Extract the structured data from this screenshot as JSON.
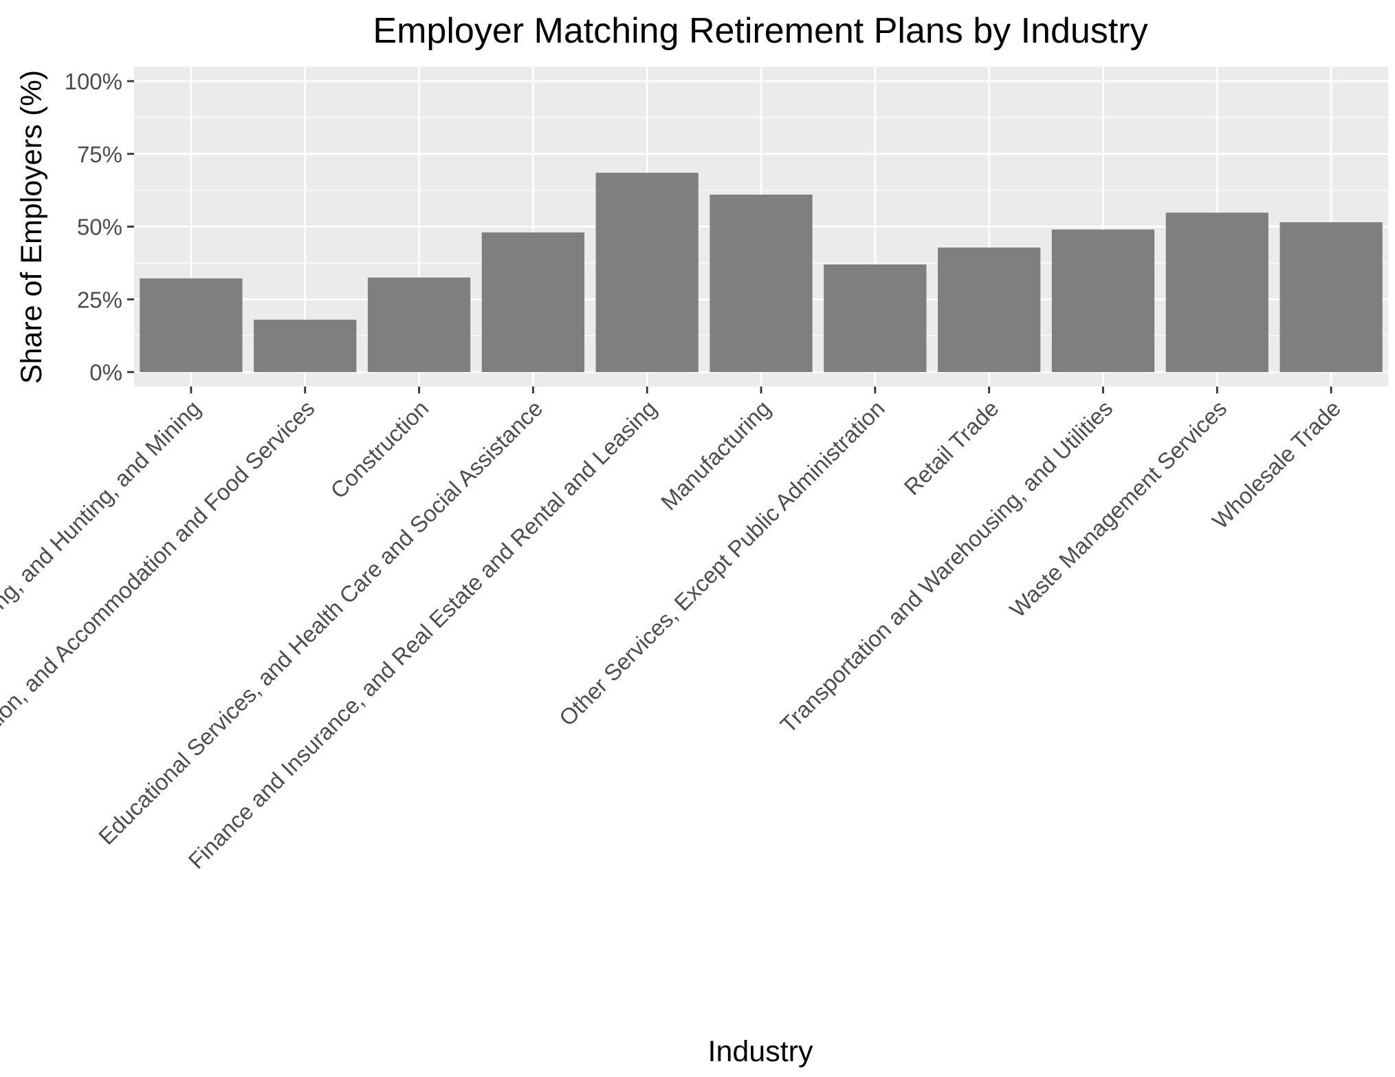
{
  "chart_data": {
    "type": "bar",
    "title": "Employer Matching Retirement Plans by Industry",
    "xlabel": "Industry",
    "ylabel": "Share of Employers (%)",
    "ylim": [
      0,
      100
    ],
    "y_ticks": [
      0,
      25,
      50,
      75,
      100
    ],
    "y_tick_labels": [
      "0%",
      "25%",
      "50%",
      "75%",
      "100%"
    ],
    "grid": true,
    "legend": "none",
    "categories": [
      "Agriculture, Forestry, Fishing, and Hunting, and Mining",
      "Arts, Entertainment, and Recreation, and Accommodation and Food Services",
      "Construction",
      "Educational Services, and Health Care and Social Assistance",
      "Finance and Insurance, and Real Estate and Rental and Leasing",
      "Manufacturing",
      "Other Services, Except Public Administration",
      "Retail Trade",
      "Transportation and Warehousing, and Utilities",
      "Waste Management Services",
      "Wholesale Trade"
    ],
    "values": [
      32.2,
      18,
      32.5,
      48,
      68.5,
      61,
      37,
      42.8,
      49,
      54.8,
      51.5
    ],
    "colors": {
      "bar": "#7f7f7f",
      "panel": "#ebebeb",
      "grid": "#ffffff",
      "tick": "#333333",
      "tick_text": "#4d4d4d",
      "text": "#000000"
    }
  }
}
